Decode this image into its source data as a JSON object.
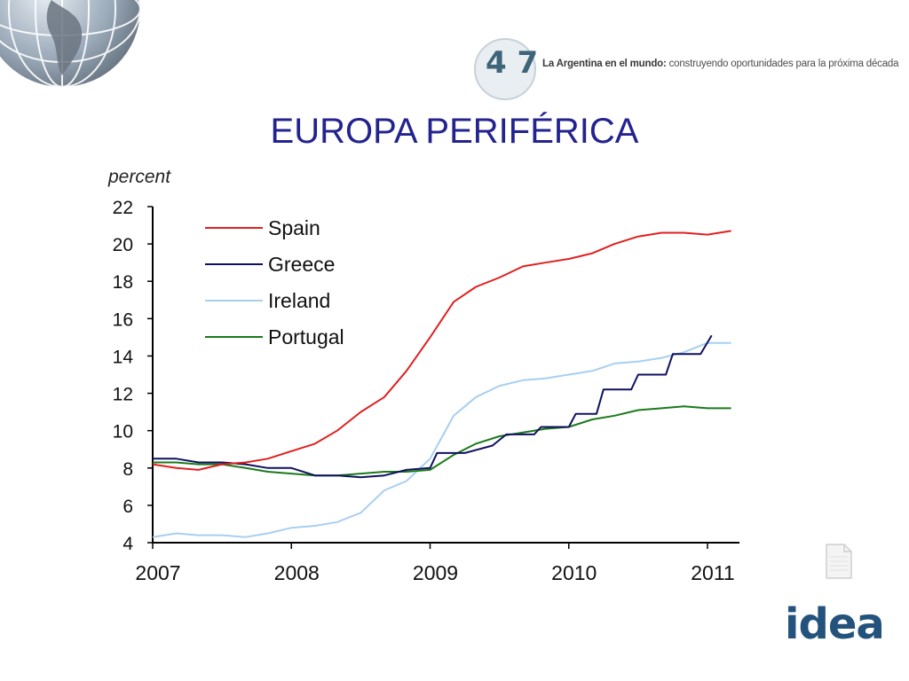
{
  "header": {
    "badge_text": "4 7",
    "tagline_bold": "La Argentina en el mundo:",
    "tagline_rest": " construyendo oportunidades para la próxima década"
  },
  "title": "EUROPA PERIFÉRICA",
  "footer_logo": "idea",
  "colors": {
    "title": "#23238f",
    "spain": "#e02020",
    "greece": "#101060",
    "ireland": "#a8cff0",
    "portugal": "#1a7a1a",
    "logo": "#23527c"
  },
  "icons": [
    "globe-icon",
    "document-icon"
  ],
  "chart_data": {
    "type": "line",
    "ylabel": "percent",
    "xlabel": "",
    "ylim": [
      4,
      22
    ],
    "xlim": [
      2007,
      2011.2
    ],
    "yticks": [
      4,
      6,
      8,
      10,
      12,
      14,
      16,
      18,
      20,
      22
    ],
    "xticks": [
      2007,
      2008,
      2009,
      2010,
      2011
    ],
    "xtick_labels": [
      "2007",
      "2008",
      "2009",
      "2010",
      "2011"
    ],
    "legend_position": "top-left",
    "grid": false,
    "series": [
      {
        "name": "Spain",
        "color": "#e02020",
        "x": [
          2007.0,
          2007.17,
          2007.33,
          2007.5,
          2007.67,
          2007.83,
          2008.0,
          2008.17,
          2008.33,
          2008.5,
          2008.67,
          2008.83,
          2009.0,
          2009.17,
          2009.33,
          2009.5,
          2009.67,
          2009.83,
          2010.0,
          2010.17,
          2010.33,
          2010.5,
          2010.67,
          2010.83,
          2011.0,
          2011.17
        ],
        "values": [
          8.2,
          8.0,
          7.9,
          8.2,
          8.3,
          8.5,
          8.9,
          9.3,
          10.0,
          11.0,
          11.8,
          13.2,
          15.0,
          16.9,
          17.7,
          18.2,
          18.8,
          19.0,
          19.2,
          19.5,
          20.0,
          20.4,
          20.6,
          20.6,
          20.5,
          20.7
        ]
      },
      {
        "name": "Greece",
        "color": "#101060",
        "x": [
          2007.0,
          2007.17,
          2007.33,
          2007.5,
          2007.67,
          2007.83,
          2008.0,
          2008.17,
          2008.33,
          2008.5,
          2008.67,
          2008.83,
          2009.0,
          2009.05,
          2009.25,
          2009.45,
          2009.55,
          2009.75,
          2009.8,
          2010.0,
          2010.05,
          2010.2,
          2010.25,
          2010.45,
          2010.5,
          2010.7,
          2010.75,
          2010.95,
          2011.03
        ],
        "values": [
          8.5,
          8.5,
          8.3,
          8.3,
          8.2,
          8.0,
          8.0,
          7.6,
          7.6,
          7.5,
          7.6,
          7.9,
          8.0,
          8.8,
          8.8,
          9.2,
          9.8,
          9.8,
          10.2,
          10.2,
          10.9,
          10.9,
          12.2,
          12.2,
          13.0,
          13.0,
          14.1,
          14.1,
          15.1
        ]
      },
      {
        "name": "Ireland",
        "color": "#a8cff0",
        "x": [
          2007.0,
          2007.17,
          2007.33,
          2007.5,
          2007.67,
          2007.83,
          2008.0,
          2008.17,
          2008.33,
          2008.5,
          2008.67,
          2008.83,
          2009.0,
          2009.17,
          2009.33,
          2009.5,
          2009.67,
          2009.83,
          2010.0,
          2010.17,
          2010.33,
          2010.5,
          2010.67,
          2010.83,
          2011.0,
          2011.17
        ],
        "values": [
          4.3,
          4.5,
          4.4,
          4.4,
          4.3,
          4.5,
          4.8,
          4.9,
          5.1,
          5.6,
          6.8,
          7.3,
          8.5,
          10.8,
          11.8,
          12.4,
          12.7,
          12.8,
          13.0,
          13.2,
          13.6,
          13.7,
          13.9,
          14.2,
          14.7,
          14.7
        ]
      },
      {
        "name": "Portugal",
        "color": "#1a7a1a",
        "x": [
          2007.0,
          2007.17,
          2007.33,
          2007.5,
          2007.67,
          2007.83,
          2008.0,
          2008.17,
          2008.33,
          2008.5,
          2008.67,
          2008.83,
          2009.0,
          2009.17,
          2009.33,
          2009.5,
          2009.67,
          2009.83,
          2010.0,
          2010.17,
          2010.33,
          2010.5,
          2010.67,
          2010.83,
          2011.0,
          2011.17
        ],
        "values": [
          8.3,
          8.3,
          8.2,
          8.2,
          8.0,
          7.8,
          7.7,
          7.6,
          7.6,
          7.7,
          7.8,
          7.8,
          7.9,
          8.7,
          9.3,
          9.7,
          9.9,
          10.1,
          10.2,
          10.6,
          10.8,
          11.1,
          11.2,
          11.3,
          11.2,
          11.2
        ]
      }
    ]
  }
}
